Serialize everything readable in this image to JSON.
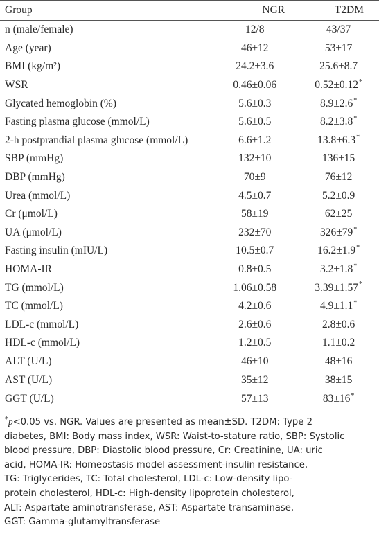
{
  "table": {
    "headers": [
      "Group",
      "NGR",
      "T2DM"
    ],
    "rows": [
      {
        "label": "n (male/female)",
        "ngr": "12/8",
        "t2dm": "43/37",
        "sig": false
      },
      {
        "label": "Age (year)",
        "ngr": "46±12",
        "t2dm": "53±17",
        "sig": false
      },
      {
        "label": "BMI (kg/m²)",
        "ngr": "24.2±3.6",
        "t2dm": "25.6±8.7",
        "sig": false
      },
      {
        "label": "WSR",
        "ngr": "0.46±0.06",
        "t2dm": "0.52±0.12",
        "sig": true
      },
      {
        "label": "Glycated hemoglobin (%)",
        "ngr": "5.6±0.3",
        "t2dm": "8.9±2.6",
        "sig": true
      },
      {
        "label": "Fasting plasma glucose (mmol/L)",
        "ngr": "5.6±0.5",
        "t2dm": "8.2±3.8",
        "sig": true
      },
      {
        "label": "2-h postprandial plasma glucose (mmol/L)",
        "ngr": "6.6±1.2",
        "t2dm": "13.8±6.3",
        "sig": true
      },
      {
        "label": "SBP (mmHg)",
        "ngr": "132±10",
        "t2dm": "136±15",
        "sig": false
      },
      {
        "label": "DBP (mmHg)",
        "ngr": "70±9",
        "t2dm": "76±12",
        "sig": false
      },
      {
        "label": "Urea (mmol/L)",
        "ngr": "4.5±0.7",
        "t2dm": "5.2±0.9",
        "sig": false
      },
      {
        "label": "Cr (μmol/L)",
        "ngr": "58±19",
        "t2dm": "62±25",
        "sig": false
      },
      {
        "label": "UA (μmol/L)",
        "ngr": "232±70",
        "t2dm": "326±79",
        "sig": true
      },
      {
        "label": "Fasting insulin (mIU/L)",
        "ngr": "10.5±0.7",
        "t2dm": "16.2±1.9",
        "sig": true
      },
      {
        "label": "HOMA-IR",
        "ngr": "0.8±0.5",
        "t2dm": "3.2±1.8",
        "sig": true
      },
      {
        "label": "TG (mmol/L)",
        "ngr": "1.06±0.58",
        "t2dm": "3.39±1.57",
        "sig": true
      },
      {
        "label": "TC (mmol/L)",
        "ngr": "4.2±0.6",
        "t2dm": "4.9±1.1",
        "sig": true
      },
      {
        "label": "LDL-c (mmol/L)",
        "ngr": "2.6±0.6",
        "t2dm": "2.8±0.6",
        "sig": false
      },
      {
        "label": "HDL-c (mmol/L)",
        "ngr": "1.2±0.5",
        "t2dm": "1.1±0.2",
        "sig": false
      },
      {
        "label": "ALT (U/L)",
        "ngr": "46±10",
        "t2dm": "48±16",
        "sig": false
      },
      {
        "label": "AST (U/L)",
        "ngr": "35±12",
        "t2dm": "38±15",
        "sig": false
      },
      {
        "label": "GGT (U/L)",
        "ngr": "57±13",
        "t2dm": "83±16",
        "sig": true
      }
    ],
    "sig_marker": "*"
  },
  "footnote": {
    "marker": "*",
    "symbol": "p",
    "lines": [
      "<0.05 vs. NGR. Values are presented as mean±SD. T2DM: Type 2",
      "diabetes, BMI: Body mass index, WSR: Waist-to-stature ratio, SBP: Systolic",
      "blood pressure, DBP: Diastolic blood pressure, Cr: Creatinine, UA: uric",
      "acid, HOMA-IR: Homeostasis model assessment-insulin resistance,",
      "TG: Triglycerides, TC: Total cholesterol, LDL-c: Low-density lipo-",
      "protein cholesterol, HDL-c: High-density lipoprotein cholesterol,",
      "ALT: Aspartate aminotransferase, AST: Aspartate transaminase,",
      "GGT: Gamma-glutamyltransferase"
    ]
  }
}
